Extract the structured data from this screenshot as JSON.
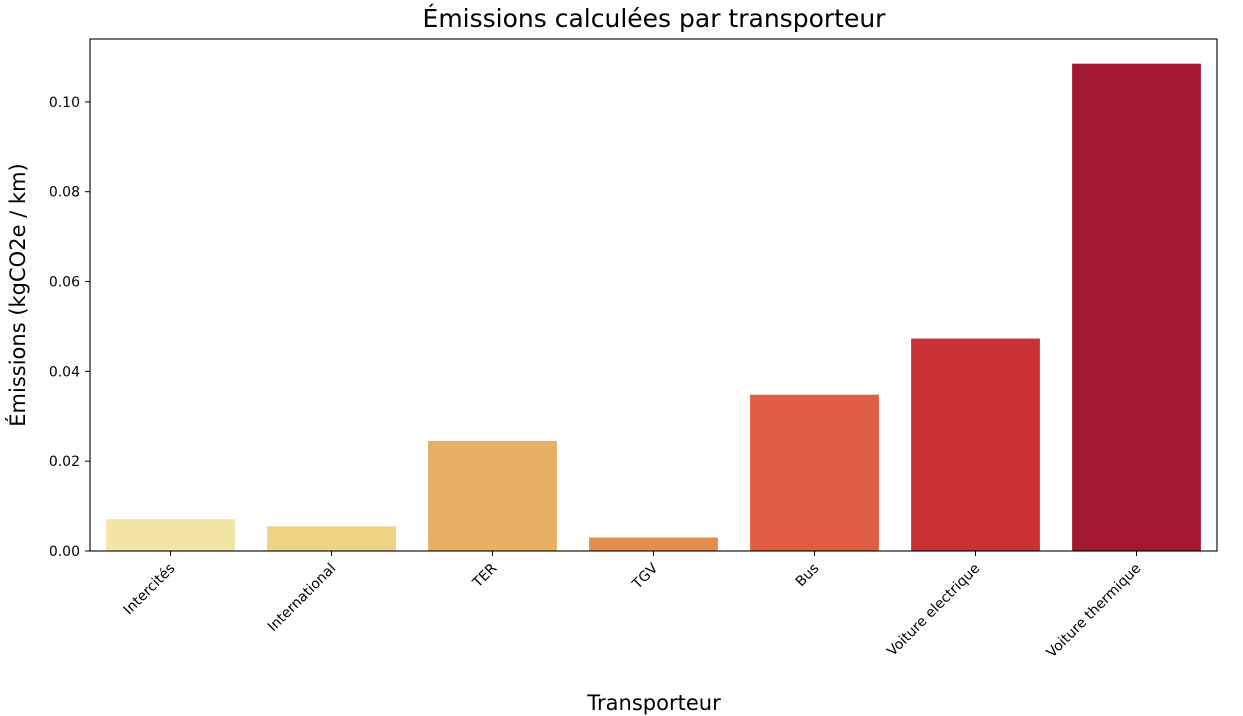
{
  "chart_data": {
    "type": "bar",
    "title": "Émissions calculées par transporteur",
    "xlabel": "Transporteur",
    "ylabel": "Émissions (kgCO2e / km)",
    "categories": [
      "Intercités",
      "International",
      "TER",
      "TGV",
      "Bus",
      "Voiture electrique",
      "Voiture thermique"
    ],
    "values": [
      0.0071,
      0.0055,
      0.0245,
      0.003,
      0.0348,
      0.0473,
      0.1085
    ],
    "colors": [
      "#f2e5a6",
      "#efd283",
      "#e6af61",
      "#e58d4d",
      "#e05e43",
      "#c93234",
      "#a21830"
    ],
    "ylim": [
      0,
      0.114
    ],
    "yticks": [
      0.0,
      0.02,
      0.04,
      0.06,
      0.08,
      0.1
    ],
    "ytick_labels": [
      "0.00",
      "0.02",
      "0.04",
      "0.06",
      "0.08",
      "0.10"
    ],
    "grid": false,
    "legend": "none"
  }
}
